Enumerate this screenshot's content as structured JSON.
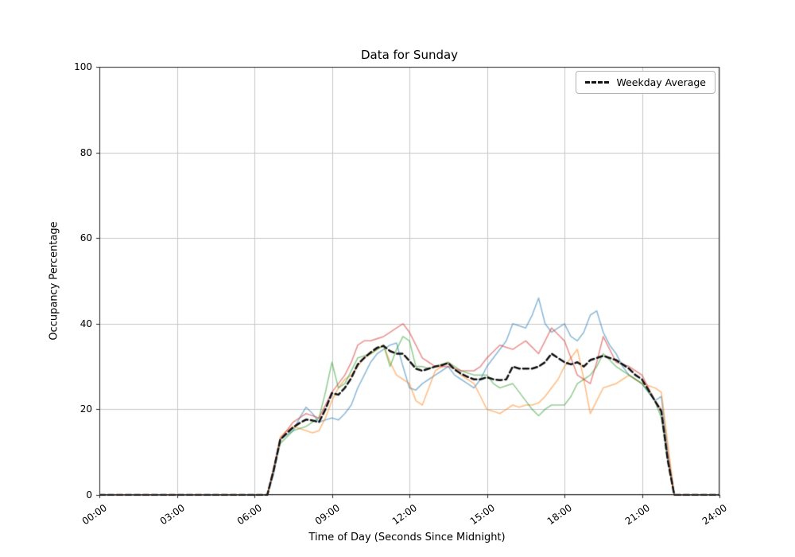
{
  "chart_data": {
    "type": "line",
    "title": "Data for Sunday",
    "xlabel": "Time of Day (Seconds Since Midnight)",
    "ylabel": "Occupancy Percentage",
    "xlim": [
      0,
      24
    ],
    "ylim": [
      0,
      100
    ],
    "grid": true,
    "legend_position": "upper right",
    "legend_label": "Weekday Average",
    "xtick_values": [
      0,
      3,
      6,
      9,
      12,
      15,
      18,
      21,
      24
    ],
    "xtick_labels": [
      "00:00",
      "03:00",
      "06:00",
      "09:00",
      "12:00",
      "15:00",
      "18:00",
      "21:00",
      "24:00"
    ],
    "ytick_values": [
      0,
      20,
      40,
      60,
      80,
      100
    ],
    "ytick_labels": [
      "0",
      "20",
      "40",
      "60",
      "80",
      "100"
    ],
    "x_hours": [
      0,
      1,
      2,
      3,
      4,
      5,
      6,
      6.5,
      6.75,
      7,
      7.25,
      7.5,
      7.75,
      8,
      8.25,
      8.5,
      8.75,
      9,
      9.25,
      9.5,
      9.75,
      10,
      10.25,
      10.5,
      10.75,
      11,
      11.25,
      11.5,
      11.75,
      12,
      12.25,
      12.5,
      12.75,
      13,
      13.25,
      13.5,
      13.75,
      14,
      14.25,
      14.5,
      14.75,
      15,
      15.25,
      15.5,
      15.75,
      16,
      16.25,
      16.5,
      16.75,
      17,
      17.25,
      17.5,
      17.75,
      18,
      18.25,
      18.5,
      18.75,
      19,
      19.25,
      19.5,
      19.75,
      20,
      20.25,
      20.5,
      20.75,
      21,
      21.25,
      21.5,
      21.75,
      22,
      22.25,
      23,
      24
    ],
    "series": [
      {
        "label": null,
        "color": "#1f77b4",
        "alpha": 0.5,
        "width": 1.6,
        "dash": [],
        "values": [
          0,
          0,
          0,
          0,
          0,
          0,
          0,
          0,
          5,
          13,
          14,
          15,
          18,
          20.5,
          19,
          17,
          17.5,
          18,
          17.5,
          19,
          21,
          25,
          28,
          31,
          33,
          34,
          35,
          35.5,
          30,
          25,
          24.5,
          26,
          27,
          28,
          29,
          30,
          28,
          27,
          26,
          25,
          27,
          30,
          32,
          34,
          36,
          40,
          39.5,
          39,
          42,
          46,
          40,
          38,
          39,
          40,
          37,
          36,
          38,
          42,
          43,
          38,
          35,
          33,
          30,
          28,
          27,
          26,
          24,
          22,
          23,
          10,
          0,
          0,
          0
        ]
      },
      {
        "label": null,
        "color": "#ff7f0e",
        "alpha": 0.5,
        "width": 1.6,
        "dash": [],
        "values": [
          0,
          0,
          0,
          0,
          0,
          0,
          0,
          0,
          6,
          13.5,
          15,
          16,
          15.5,
          15,
          14.5,
          15,
          18,
          22,
          25,
          27,
          28,
          30,
          32,
          33,
          34,
          35,
          31,
          28,
          27,
          26,
          22,
          21,
          25,
          29,
          30,
          31,
          29.5,
          28,
          27,
          26,
          23,
          20,
          19.5,
          19,
          20,
          21,
          20.5,
          21,
          21,
          21.5,
          23,
          25,
          27,
          30,
          32,
          34,
          27,
          19,
          22,
          25,
          25.5,
          26,
          27,
          28,
          27,
          26,
          25.5,
          25,
          24,
          12,
          0,
          0,
          0
        ]
      },
      {
        "label": null,
        "color": "#2ca02c",
        "alpha": 0.5,
        "width": 1.6,
        "dash": [],
        "values": [
          0,
          0,
          0,
          0,
          0,
          0,
          0,
          0,
          6,
          12,
          13.5,
          15,
          15.5,
          16,
          17,
          18,
          24,
          31,
          25,
          26,
          29,
          32,
          32.5,
          33,
          34,
          35,
          30,
          34,
          37,
          36,
          30,
          30,
          29.5,
          30,
          30.5,
          31,
          30,
          29,
          28.5,
          28,
          28,
          28,
          26,
          25,
          25.5,
          26,
          24,
          22,
          20,
          18.5,
          20,
          21,
          21,
          21,
          23,
          26,
          27,
          28,
          30,
          33,
          31.5,
          30,
          29,
          28,
          27,
          26,
          24,
          22,
          18,
          8,
          0,
          0,
          0
        ]
      },
      {
        "label": null,
        "color": "#d62728",
        "alpha": 0.5,
        "width": 1.6,
        "dash": [],
        "values": [
          0,
          0,
          0,
          0,
          0,
          0,
          0,
          0,
          6.5,
          13,
          15,
          17,
          18,
          19,
          18.5,
          18,
          21,
          24,
          26,
          28,
          31,
          35,
          36,
          36,
          36.5,
          37,
          38,
          39,
          40,
          38,
          35,
          32,
          31,
          30,
          30,
          30,
          29.5,
          29,
          29,
          29,
          30,
          32,
          33.5,
          35,
          34.5,
          34,
          35,
          36,
          34.5,
          33,
          36,
          39,
          37.5,
          36,
          32,
          28,
          27,
          26,
          31,
          37,
          34,
          31,
          30.5,
          30,
          29,
          28,
          25,
          22,
          20,
          9,
          0,
          0,
          0
        ]
      },
      {
        "label": "Weekday Average",
        "color": "#111111",
        "alpha": 1,
        "width": 2.5,
        "dash": [
          7,
          4
        ],
        "values": [
          0,
          0,
          0,
          0,
          0,
          0,
          0,
          0,
          5.9,
          12.9,
          14.4,
          15.8,
          16.8,
          17.6,
          17.4,
          17,
          20,
          23.8,
          23.4,
          25,
          27.3,
          30.5,
          32,
          33.3,
          34.4,
          34.8,
          33.6,
          33,
          33,
          31.3,
          29.5,
          29,
          29.5,
          30,
          30.3,
          30.8,
          29.3,
          28.3,
          27.6,
          27,
          27,
          27.5,
          27,
          26.8,
          27,
          30,
          29.5,
          29.5,
          29.5,
          30,
          31,
          33,
          32,
          31,
          30.5,
          31,
          30,
          31.5,
          32,
          32.5,
          32,
          31.5,
          30.5,
          29.5,
          28,
          27,
          24.5,
          22,
          19.5,
          8,
          0,
          0,
          0
        ]
      }
    ],
    "colors": {
      "grid": "#c8c8c8",
      "spine": "#262626",
      "background": "#ffffff"
    }
  }
}
